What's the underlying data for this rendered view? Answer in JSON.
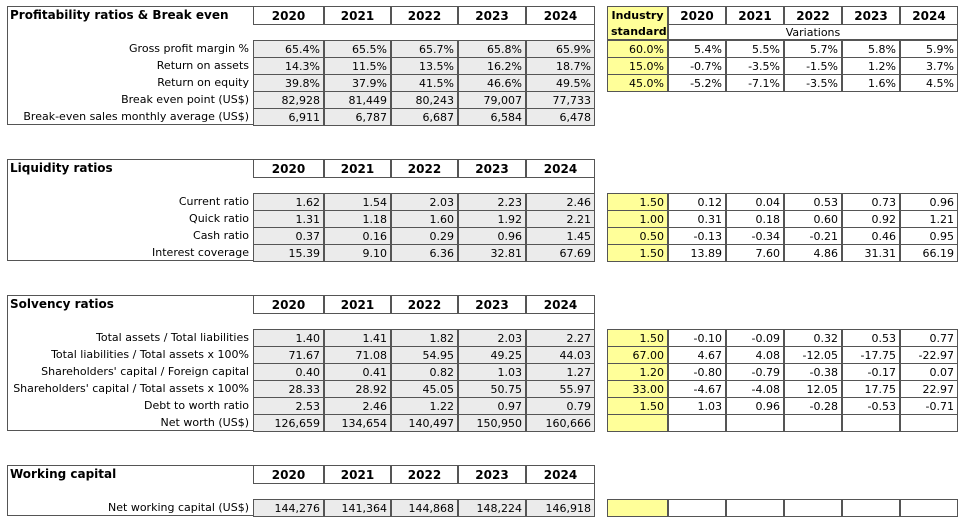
{
  "years": [
    "2020",
    "2021",
    "2022",
    "2023",
    "2024"
  ],
  "industry_header": [
    "Industry",
    "standard"
  ],
  "variations_label": "Variations",
  "sections": [
    {
      "title": "Profitability ratios & Break even",
      "rows": [
        {
          "label": "Gross profit margin %",
          "values": [
            "65.4%",
            "65.5%",
            "65.7%",
            "65.8%",
            "65.9%"
          ],
          "industry": "60.0%",
          "variations": [
            "5.4%",
            "5.5%",
            "5.7%",
            "5.8%",
            "5.9%"
          ]
        },
        {
          "label": "Return on assets",
          "values": [
            "14.3%",
            "11.5%",
            "13.5%",
            "16.2%",
            "18.7%"
          ],
          "industry": "15.0%",
          "variations": [
            "-0.7%",
            "-3.5%",
            "-1.5%",
            "1.2%",
            "3.7%"
          ]
        },
        {
          "label": "Return on equity",
          "values": [
            "39.8%",
            "37.9%",
            "41.5%",
            "46.6%",
            "49.5%"
          ],
          "industry": "45.0%",
          "variations": [
            "-5.2%",
            "-7.1%",
            "-3.5%",
            "1.6%",
            "4.5%"
          ]
        },
        {
          "label": "Break even point (US$)",
          "values": [
            "82,928",
            "81,449",
            "80,243",
            "79,007",
            "77,733"
          ]
        },
        {
          "label": "Break-even sales monthly average (US$)",
          "values": [
            "6,911",
            "6,787",
            "6,687",
            "6,584",
            "6,478"
          ]
        }
      ]
    },
    {
      "title": "Liquidity ratios",
      "rows": [
        {
          "label": "Current ratio",
          "values": [
            "1.62",
            "1.54",
            "2.03",
            "2.23",
            "2.46"
          ],
          "industry": "1.50",
          "variations": [
            "0.12",
            "0.04",
            "0.53",
            "0.73",
            "0.96"
          ]
        },
        {
          "label": "Quick ratio",
          "values": [
            "1.31",
            "1.18",
            "1.60",
            "1.92",
            "2.21"
          ],
          "industry": "1.00",
          "variations": [
            "0.31",
            "0.18",
            "0.60",
            "0.92",
            "1.21"
          ]
        },
        {
          "label": "Cash ratio",
          "values": [
            "0.37",
            "0.16",
            "0.29",
            "0.96",
            "1.45"
          ],
          "industry": "0.50",
          "variations": [
            "-0.13",
            "-0.34",
            "-0.21",
            "0.46",
            "0.95"
          ]
        },
        {
          "label": "Interest coverage",
          "values": [
            "15.39",
            "9.10",
            "6.36",
            "32.81",
            "67.69"
          ],
          "industry": "1.50",
          "variations": [
            "13.89",
            "7.60",
            "4.86",
            "31.31",
            "66.19"
          ]
        }
      ]
    },
    {
      "title": "Solvency ratios",
      "rows": [
        {
          "label": "Total assets / Total liabilities",
          "values": [
            "1.40",
            "1.41",
            "1.82",
            "2.03",
            "2.27"
          ],
          "industry": "1.50",
          "variations": [
            "-0.10",
            "-0.09",
            "0.32",
            "0.53",
            "0.77"
          ]
        },
        {
          "label": "Total liabilities / Total assets x 100%",
          "values": [
            "71.67",
            "71.08",
            "54.95",
            "49.25",
            "44.03"
          ],
          "industry": "67.00",
          "variations": [
            "4.67",
            "4.08",
            "-12.05",
            "-17.75",
            "-22.97"
          ]
        },
        {
          "label": "Shareholders' capital / Foreign capital",
          "values": [
            "0.40",
            "0.41",
            "0.82",
            "1.03",
            "1.27"
          ],
          "industry": "1.20",
          "variations": [
            "-0.80",
            "-0.79",
            "-0.38",
            "-0.17",
            "0.07"
          ]
        },
        {
          "label": "Shareholders' capital / Total assets x 100%",
          "values": [
            "28.33",
            "28.92",
            "45.05",
            "50.75",
            "55.97"
          ],
          "industry": "33.00",
          "variations": [
            "-4.67",
            "-4.08",
            "12.05",
            "17.75",
            "22.97"
          ]
        },
        {
          "label": "Debt to worth ratio",
          "values": [
            "2.53",
            "2.46",
            "1.22",
            "0.97",
            "0.79"
          ],
          "industry": "1.50",
          "variations": [
            "1.03",
            "0.96",
            "-0.28",
            "-0.53",
            "-0.71"
          ]
        },
        {
          "label": "Net worth (US$)",
          "values": [
            "126,659",
            "134,654",
            "140,497",
            "150,950",
            "160,666"
          ],
          "industry": "",
          "variations": [
            "",
            "",
            "",
            "",
            ""
          ]
        }
      ]
    },
    {
      "title": "Working capital",
      "rows": [
        {
          "label": "Net working capital (US$)",
          "values": [
            "144,276",
            "141,364",
            "144,868",
            "148,224",
            "146,918"
          ],
          "industry": "",
          "variations": [
            "",
            "",
            "",
            "",
            ""
          ]
        }
      ]
    }
  ],
  "colors": {
    "value_cell": "#ebebeb",
    "industry_cell": "#ffff99",
    "border": "#555555"
  }
}
